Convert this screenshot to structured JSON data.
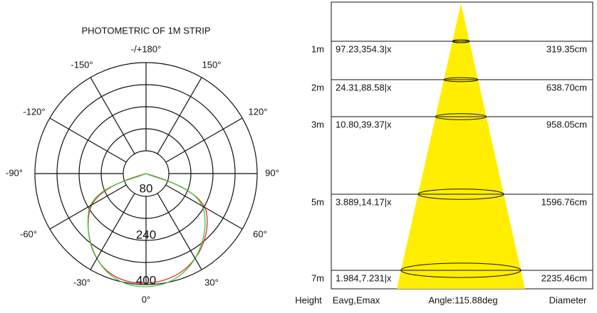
{
  "polar": {
    "title": "PHOTOMETRIC OF 1M  STRIP",
    "angle_labels": [
      "-/+180°",
      "-150°",
      "150°",
      "-120°",
      "120°",
      "-90°",
      "90°",
      "-60°",
      "60°",
      "-30°",
      "30°",
      "0°"
    ],
    "radial_labels": [
      "80",
      "240",
      "400"
    ]
  },
  "cone": {
    "rows": [
      {
        "height": "1m",
        "illuminance": "97.23,354.3|x",
        "diameter": "319.35cm"
      },
      {
        "height": "2m",
        "illuminance": "24.31,88.58|x",
        "diameter": "638.70cm"
      },
      {
        "height": "3m",
        "illuminance": "10.80,39.37|x",
        "diameter": "958.05cm"
      },
      {
        "height": "5m",
        "illuminance": "3.889,14.17|x",
        "diameter": "1596.76cm"
      },
      {
        "height": "7m",
        "illuminance": "1.984,7.231|x",
        "diameter": "2235.46cm"
      }
    ],
    "footer": {
      "height": "Height",
      "illuminance": "Eavg,Emax",
      "angle": "Angle:115.88deg",
      "diameter": "Diameter"
    }
  }
}
